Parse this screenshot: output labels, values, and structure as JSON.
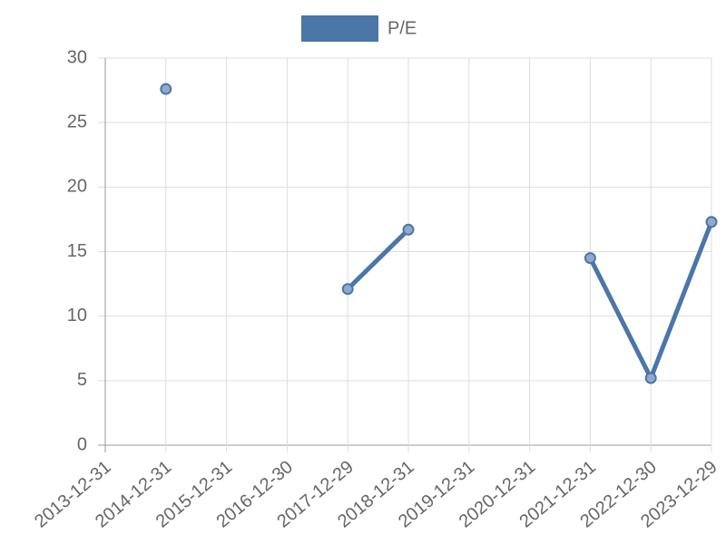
{
  "chart_data": {
    "type": "line",
    "categories": [
      "2013-12-31",
      "2014-12-31",
      "2015-12-31",
      "2016-12-30",
      "2017-12-29",
      "2018-12-31",
      "2019-12-31",
      "2020-12-31",
      "2021-12-31",
      "2022-12-30",
      "2023-12-29"
    ],
    "series": [
      {
        "name": "P/E",
        "color": "#4a76a8",
        "values": [
          null,
          27.6,
          null,
          null,
          12.1,
          16.7,
          null,
          null,
          14.5,
          5.2,
          17.3
        ]
      }
    ],
    "ylim": [
      0,
      30
    ],
    "yticks": [
      0,
      5,
      10,
      15,
      20,
      25,
      30
    ],
    "grid": true,
    "legend": "top"
  }
}
